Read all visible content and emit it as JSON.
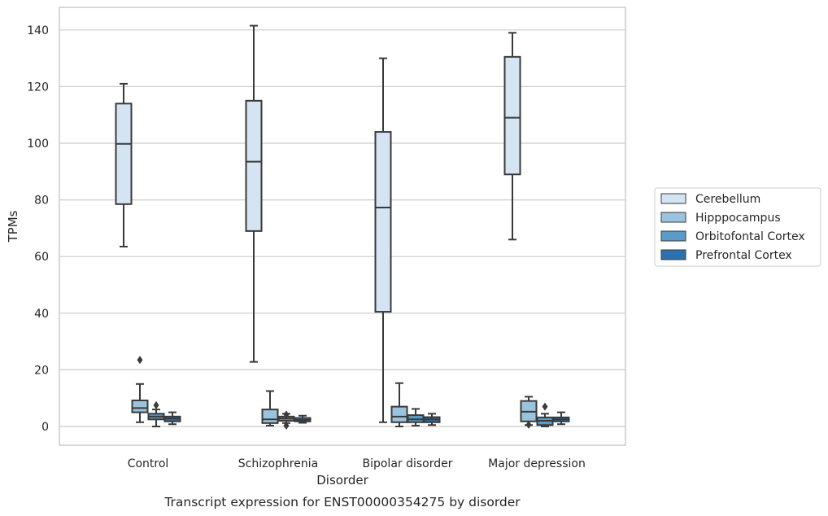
{
  "chart_data": {
    "type": "boxplot",
    "title": "Transcript expression for ENST00000354275 by disorder",
    "xlabel": "Disorder",
    "ylabel": "TPMs",
    "ylim": [
      -7,
      148
    ],
    "yticks": [
      0,
      20,
      40,
      60,
      80,
      100,
      120,
      140
    ],
    "grid": true,
    "legend_position": "right",
    "categories": [
      "Control",
      "Schizophrenia",
      "Bipolar disorder",
      "Major depression"
    ],
    "series": [
      {
        "name": "Cerebellum",
        "color": "#d4e4f2",
        "boxes": [
          {
            "whisker_low": 63.5,
            "q1": 78.5,
            "median": 99.8,
            "q3": 114,
            "whisker_high": 121,
            "outliers": []
          },
          {
            "whisker_low": 22.8,
            "q1": 69,
            "median": 93.5,
            "q3": 115,
            "whisker_high": 141.5,
            "outliers": []
          },
          {
            "whisker_low": 1.5,
            "q1": 40.5,
            "median": 77.3,
            "q3": 104,
            "whisker_high": 130,
            "outliers": []
          },
          {
            "whisker_low": 66,
            "q1": 89,
            "median": 109,
            "q3": 130.5,
            "whisker_high": 139,
            "outliers": []
          }
        ]
      },
      {
        "name": "Hipppocampus",
        "color": "#9ac4de",
        "boxes": [
          {
            "whisker_low": 1.5,
            "q1": 5,
            "median": 6.5,
            "q3": 9.2,
            "whisker_high": 15,
            "outliers": [
              23.5
            ]
          },
          {
            "whisker_low": 0.3,
            "q1": 1.2,
            "median": 2.5,
            "q3": 6,
            "whisker_high": 12.5,
            "outliers": []
          },
          {
            "whisker_low": 0,
            "q1": 1.5,
            "median": 3.5,
            "q3": 7,
            "whisker_high": 15.3,
            "outliers": []
          },
          {
            "whisker_low": 0.5,
            "q1": 1.8,
            "median": 5.2,
            "q3": 9,
            "whisker_high": 10.5,
            "outliers": [
              0.6
            ]
          }
        ]
      },
      {
        "name": "Orbitofontal Cortex",
        "color": "#5a9bc7",
        "boxes": [
          {
            "whisker_low": 0,
            "q1": 2.5,
            "median": 3.5,
            "q3": 4.5,
            "whisker_high": 6,
            "outliers": [
              7.5
            ]
          },
          {
            "whisker_low": 1.2,
            "q1": 2,
            "median": 2.8,
            "q3": 3.5,
            "whisker_high": 4.5,
            "outliers": [
              0.3,
              4.2
            ]
          },
          {
            "whisker_low": 0.3,
            "q1": 1.5,
            "median": 2.5,
            "q3": 4,
            "whisker_high": 6.2,
            "outliers": []
          },
          {
            "whisker_low": 0,
            "q1": 0.5,
            "median": 2,
            "q3": 3.2,
            "whisker_high": 4.5,
            "outliers": [
              7
            ]
          }
        ]
      },
      {
        "name": "Prefrontal Cortex",
        "color": "#2c70b0",
        "boxes": [
          {
            "whisker_low": 0.8,
            "q1": 1.8,
            "median": 2.8,
            "q3": 3.5,
            "whisker_high": 5,
            "outliers": []
          },
          {
            "whisker_low": 1.3,
            "q1": 1.8,
            "median": 2.3,
            "q3": 3,
            "whisker_high": 3.8,
            "outliers": []
          },
          {
            "whisker_low": 0.5,
            "q1": 1.5,
            "median": 2.5,
            "q3": 3.3,
            "whisker_high": 4.5,
            "outliers": []
          },
          {
            "whisker_low": 0.8,
            "q1": 1.8,
            "median": 2.5,
            "q3": 3.2,
            "whisker_high": 5,
            "outliers": []
          }
        ]
      }
    ]
  }
}
